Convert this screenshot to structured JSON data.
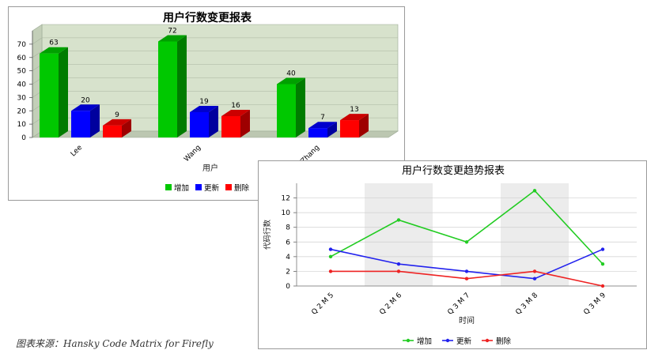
{
  "caption": "图表来源：Hansky Code Matrix for Firefly",
  "chart_data": [
    {
      "type": "bar",
      "title": "用户行数变更报表",
      "xlabel": "用户",
      "ylabel": "",
      "ylim": [
        0,
        80
      ],
      "yticks": [
        0,
        10,
        20,
        30,
        40,
        50,
        60,
        70
      ],
      "grid": true,
      "legend": "bottom-right",
      "categories": [
        "Lee",
        "Wang",
        "Zhang"
      ],
      "series": [
        {
          "name": "增加",
          "values": [
            63,
            72,
            40
          ],
          "color": "#00c800"
        },
        {
          "name": "更新",
          "values": [
            20,
            19,
            7
          ],
          "color": "#0000ff"
        },
        {
          "name": "删除",
          "values": [
            9,
            16,
            13
          ],
          "color": "#ff0000"
        }
      ]
    },
    {
      "type": "line",
      "title": "用户行数变更趋势报表",
      "xlabel": "时间",
      "ylabel": "代码行数",
      "ylim": [
        0,
        14
      ],
      "yticks": [
        0,
        2,
        4,
        6,
        8,
        10,
        12
      ],
      "grid": true,
      "legend": "bottom-center",
      "categories": [
        "Q 2 M 5",
        "Q 2 M 6",
        "Q 3 M 7",
        "Q 3 M 8",
        "Q 3 M 9"
      ],
      "series": [
        {
          "name": "增加",
          "values": [
            4,
            9,
            6,
            13,
            3
          ],
          "color": "#22cc22"
        },
        {
          "name": "更新",
          "values": [
            5,
            3,
            2,
            1,
            5
          ],
          "color": "#2222ee"
        },
        {
          "name": "删除",
          "values": [
            2,
            2,
            1,
            2,
            0
          ],
          "color": "#ee2222"
        }
      ]
    }
  ]
}
